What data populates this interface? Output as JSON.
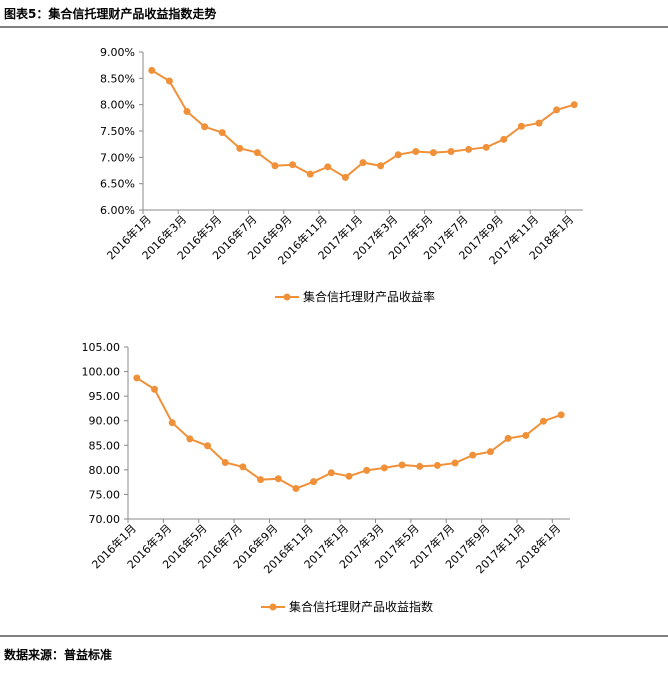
{
  "title": "图表5：集合信托理财产品收益指数走势",
  "source": "数据来源：普益标准",
  "chart_data": [
    {
      "type": "line",
      "categories": [
        "2016年1月",
        null,
        "2016年3月",
        null,
        "2016年5月",
        null,
        "2016年7月",
        null,
        "2016年9月",
        null,
        "2016年11月",
        null,
        "2017年1月",
        null,
        "2017年3月",
        null,
        "2017年5月",
        null,
        "2017年7月",
        null,
        "2017年9月",
        null,
        "2017年11月",
        null,
        "2018年1月"
      ],
      "series": [
        {
          "name": "集合信托理财产品收益率",
          "color": "#f0913a",
          "values": [
            8.65,
            8.45,
            7.87,
            7.58,
            7.47,
            7.17,
            7.09,
            6.84,
            6.86,
            6.68,
            6.82,
            6.62,
            6.9,
            6.84,
            7.05,
            7.11,
            7.09,
            7.11,
            7.15,
            7.19,
            7.34,
            7.59,
            7.65,
            7.9,
            8.0
          ]
        }
      ],
      "ylim": [
        6,
        9
      ],
      "yticks": [
        {
          "value": 6,
          "label": "6.00%"
        },
        {
          "value": 6.5,
          "label": "6.50%"
        },
        {
          "value": 7,
          "label": "7.00%"
        },
        {
          "value": 7.5,
          "label": "7.50%"
        },
        {
          "value": 8,
          "label": "8.00%"
        },
        {
          "value": 8.5,
          "label": "8.50%"
        },
        {
          "value": 9,
          "label": "9.00%"
        }
      ],
      "legend": "bottom"
    },
    {
      "type": "line",
      "categories": [
        "2016年1月",
        null,
        "2016年3月",
        null,
        "2016年5月",
        null,
        "2016年7月",
        null,
        "2016年9月",
        null,
        "2016年11月",
        null,
        "2017年1月",
        null,
        "2017年3月",
        null,
        "2017年5月",
        null,
        "2017年7月",
        null,
        "2017年9月",
        null,
        "2017年11月",
        null,
        "2018年1月"
      ],
      "series": [
        {
          "name": "集合信托理财产品收益指数",
          "color": "#f0913a",
          "values": [
            98.7,
            96.4,
            89.6,
            86.3,
            84.9,
            81.5,
            80.6,
            78.0,
            78.2,
            76.2,
            77.6,
            79.4,
            78.7,
            79.9,
            80.4,
            81.0,
            80.7,
            80.9,
            81.4,
            83.0,
            83.7,
            86.4,
            87.0,
            89.9,
            91.2
          ]
        }
      ],
      "ylim": [
        70,
        105
      ],
      "yticks": [
        {
          "value": 70,
          "label": "70.00"
        },
        {
          "value": 75,
          "label": "75.00"
        },
        {
          "value": 80,
          "label": "80.00"
        },
        {
          "value": 85,
          "label": "85.00"
        },
        {
          "value": 90,
          "label": "90.00"
        },
        {
          "value": 95,
          "label": "95.00"
        },
        {
          "value": 100,
          "label": "100.00"
        },
        {
          "value": 105,
          "label": "105.00"
        }
      ],
      "legend": "bottom"
    }
  ]
}
